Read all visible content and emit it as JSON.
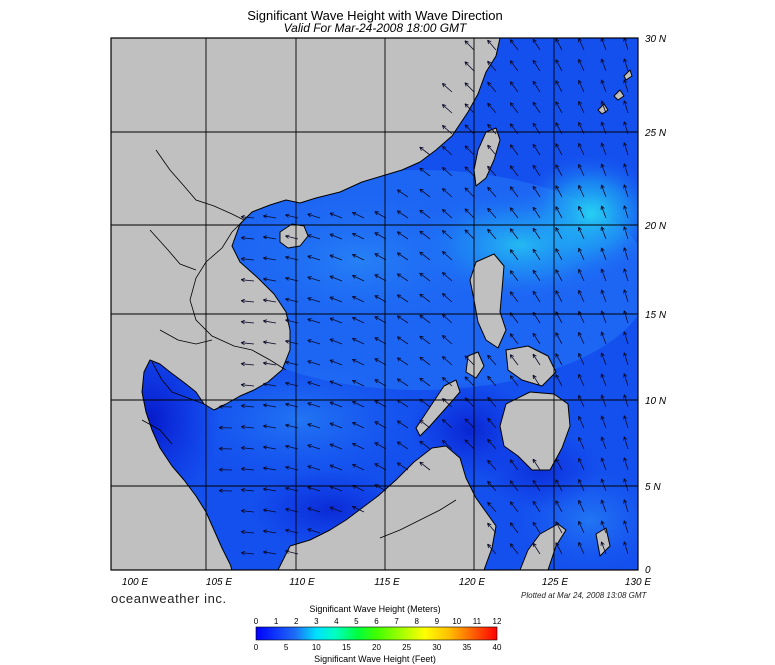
{
  "title": "Significant Wave Height with Wave Direction",
  "subtitle": "Valid For Mar-24-2008 18:00 GMT",
  "brand": "oceanweather inc.",
  "plotted": "Plotted at Mar 24, 2008 13:08 GMT",
  "lon_labels": [
    "100 E",
    "105 E",
    "110 E",
    "115 E",
    "120 E",
    "125 E",
    "130 E"
  ],
  "lat_labels": [
    "30 N",
    "25 N",
    "20 N",
    "15 N",
    "10 N",
    "5 N",
    "0"
  ],
  "colorbar": {
    "meters_title": "Significant Wave Height (Meters)",
    "feet_title": "Significant Wave Height (Feet)",
    "meters_ticks": [
      "0",
      "1",
      "2",
      "3",
      "4",
      "5",
      "6",
      "7",
      "8",
      "9",
      "10",
      "11",
      "12"
    ],
    "feet_ticks": [
      "0",
      "5",
      "10",
      "15",
      "20",
      "25",
      "30",
      "35",
      "40"
    ]
  },
  "colors": {
    "land": "#c0c0c0",
    "sea_low": "#0a22e0",
    "sea_mid": "#1e6af5",
    "sea_high": "#22d4f0",
    "grid": "#000000"
  }
}
